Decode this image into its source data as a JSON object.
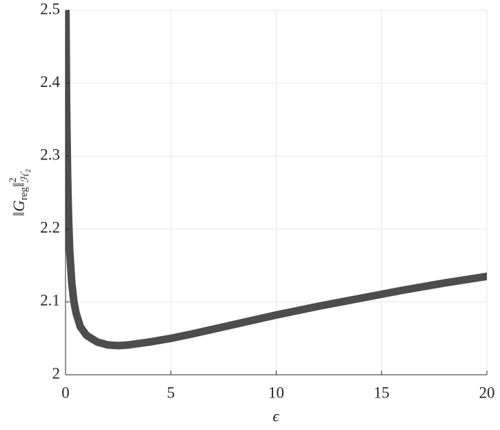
{
  "chart_data": {
    "type": "line",
    "xlabel": "ϵ",
    "ylabel": {
      "norm_open": "‖",
      "symbol": "G",
      "subscript": "reg",
      "norm_close": "‖",
      "superscript": "2",
      "space_symbol": "ℋ",
      "space_index": "2"
    },
    "x": [
      0.02,
      0.05,
      0.1,
      0.15,
      0.2,
      0.3,
      0.4,
      0.5,
      0.7,
      1,
      1.5,
      2,
      2.5,
      3,
      4,
      5,
      6,
      8,
      10,
      12,
      14,
      16,
      18,
      20
    ],
    "series": [
      {
        "color": "#4d4d4d",
        "values": [
          2.5,
          2.37,
          2.27,
          2.21,
          2.17,
          2.125,
          2.1,
          2.085,
          2.066,
          2.054,
          2.045,
          2.041,
          2.04,
          2.041,
          2.045,
          2.05,
          2.056,
          2.069,
          2.082,
          2.094,
          2.105,
          2.116,
          2.126,
          2.135
        ]
      }
    ],
    "xlim": [
      0,
      20
    ],
    "xticks": [
      0,
      5,
      10,
      15,
      20
    ],
    "ylim": [
      2,
      2.5
    ],
    "yticks": [
      2,
      2.1,
      2.2,
      2.3,
      2.4,
      2.5
    ],
    "grid": true
  }
}
